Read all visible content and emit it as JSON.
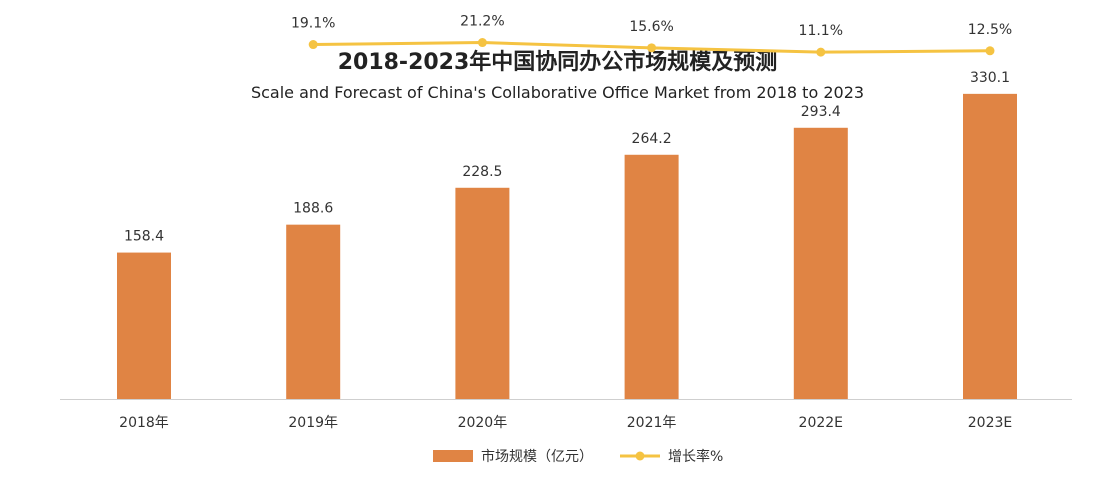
{
  "chart_data": {
    "type": "bar",
    "title": "2018-2023年中国协同办公市场规模及预测",
    "subtitle": "Scale and Forecast of China's Collaborative Office Market from 2018 to 2023",
    "categories": [
      "2018年",
      "2019年",
      "2020年",
      "2021年",
      "2022E",
      "2023E"
    ],
    "series": [
      {
        "name": "市场规模（亿元）",
        "type": "bar",
        "values": [
          158.4,
          188.6,
          228.5,
          264.2,
          293.4,
          330.1
        ],
        "labels": [
          "158.4",
          "188.6",
          "228.5",
          "264.2",
          "293.4",
          "330.1"
        ],
        "color": "#E08444"
      },
      {
        "name": "增长率%",
        "type": "line",
        "values": [
          null,
          19.1,
          21.2,
          15.6,
          11.1,
          12.5
        ],
        "labels": [
          "",
          "19.1%",
          "21.2%",
          "15.6%",
          "11.1%",
          "12.5%"
        ],
        "color": "#F5C342"
      }
    ],
    "ylim": [
      0,
      410
    ],
    "rate_ylim": [
      -355,
      45
    ],
    "grid": false,
    "legend_position": "bottom"
  }
}
